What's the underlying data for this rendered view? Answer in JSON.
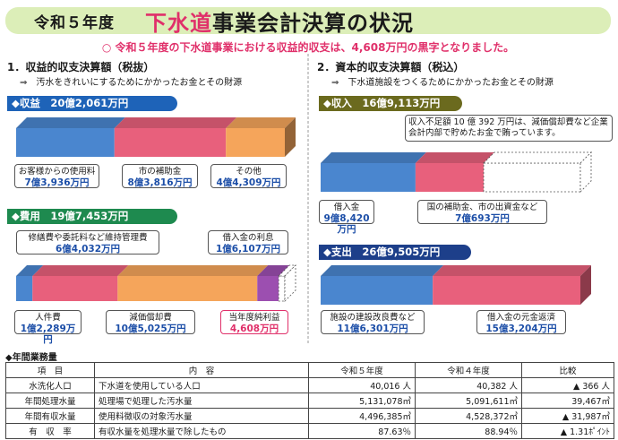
{
  "header": {
    "year": "令和５年度",
    "title_part1": "下水道",
    "title_part2": "事業会計決算の状況",
    "summary": "○ 令和５年度の下水道事業における収益的収支は、4,608万円の黒字となりました。"
  },
  "left": {
    "heading": "1．収益的収支決算額（税抜）",
    "sub": "⇒　汚水をきれいにするためにかかったお金とその財源",
    "revenue": {
      "tag": "◆収益　20億2,061万円",
      "items": [
        {
          "label": "お客様からの使用料",
          "value": "7億3,936万円",
          "amount": 73936,
          "color": "#4a86cf"
        },
        {
          "label": "市の補助金",
          "value": "8億3,816万円",
          "amount": 83816,
          "color": "#e8607c"
        },
        {
          "label": "その他",
          "value": "4億4,309万円",
          "amount": 44309,
          "color": "#f5a55b"
        }
      ]
    },
    "expense": {
      "tag": "◆費用　19億7,453万円",
      "items": [
        {
          "label": "人件費",
          "value": "1億2,289万円",
          "amount": 12289,
          "color": "#4a86cf"
        },
        {
          "label": "修繕費や委託料など維持管理費",
          "value": "6億4,032万円",
          "amount": 64032,
          "color": "#e8607c"
        },
        {
          "label": "減価償却費",
          "value": "10億5,025万円",
          "amount": 105025,
          "color": "#f5a55b"
        },
        {
          "label": "借入金の利息",
          "value": "1億6,107万円",
          "amount": 16107,
          "color": "#9c4fb0"
        },
        {
          "label": "当年度純利益",
          "value": "4,608万円",
          "amount": 4608,
          "color": "#ffffff"
        }
      ]
    }
  },
  "right": {
    "heading": "2．資本的収支決算額（税込）",
    "sub": "⇒　下水道施設をつくるためにかかったお金とその財源",
    "income": {
      "tag": "◆収入　16億9,113万円",
      "note": "収入不足額 10 億 392 万円は、減価償却費など企業会計内部で貯めたお金で賄っています。",
      "items": [
        {
          "label": "借入金",
          "value": "9億8,420万円",
          "amount": 98420,
          "color": "#4a86cf"
        },
        {
          "label": "国の補助金、市の出資金など",
          "value": "7億693万円",
          "amount": 70693,
          "color": "#e8607c"
        }
      ],
      "shortfall": 100392
    },
    "spending": {
      "tag": "◆支出　26億9,505万円",
      "items": [
        {
          "label": "施設の建設改良費など",
          "value": "11億6,301万円",
          "amount": 116301,
          "color": "#4a86cf"
        },
        {
          "label": "借入金の元金返済",
          "value": "15億3,204万円",
          "amount": 153204,
          "color": "#e8607c"
        }
      ]
    }
  },
  "table": {
    "label": "◆年間業務量",
    "headers": [
      "項　目",
      "内　容",
      "令和５年度",
      "令和４年度",
      "比較"
    ],
    "rows": [
      [
        "水洗化人口",
        "下水道を使用している人口",
        "40,016 人",
        "40,382 人",
        "▲ 366 人"
      ],
      [
        "年間処理水量",
        "処理場で処理した汚水量",
        "5,131,078㎥",
        "5,091,611㎥",
        "39,467㎥"
      ],
      [
        "年間有収水量",
        "使用料徴収の対象汚水量",
        "4,496,385㎥",
        "4,528,372㎥",
        "▲ 31,987㎥"
      ],
      [
        "有　収　率",
        "有収水量を処理水量で除したもの",
        "87.63％",
        "88.94％",
        "▲ 1.31ﾎﾟｲﾝﾄ"
      ]
    ]
  }
}
